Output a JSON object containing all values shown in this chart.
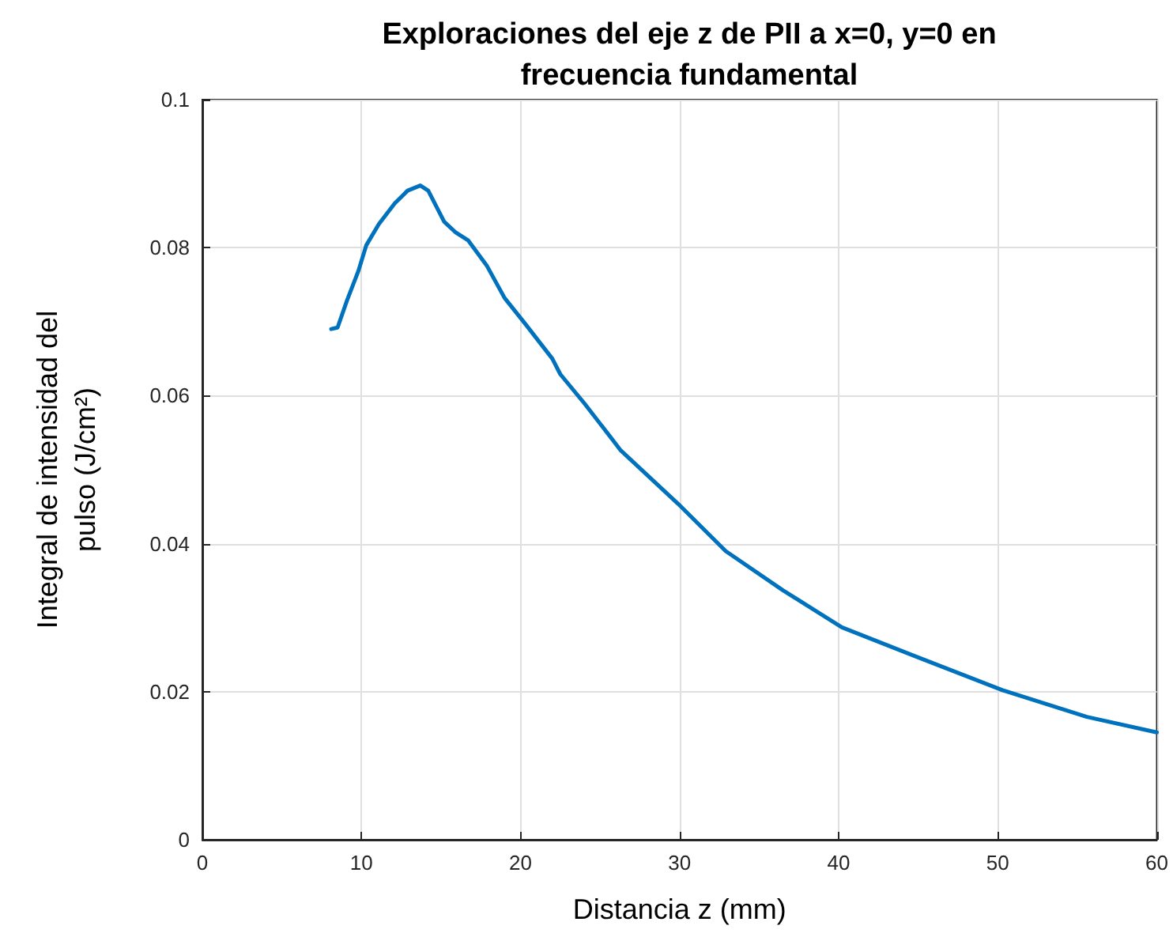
{
  "chart_data": {
    "type": "line",
    "title": "Exploraciones del eje z de PII a x=0, y=0 en\nfrecuencia fundamental",
    "xlabel": "Distancia z (mm)",
    "ylabel": "Integral de intensidad del\npulso (J/cm²)",
    "xlim": [
      0,
      60
    ],
    "xticks": [
      0,
      10,
      20,
      30,
      40,
      50,
      60
    ],
    "ylim": [
      0,
      0.1
    ],
    "yticks": [
      0,
      0.02,
      0.04,
      0.06,
      0.08,
      0.1
    ],
    "grid": true,
    "marker": "none",
    "line_style": "solid",
    "series": [
      {
        "color": "#0072bd",
        "x": [
          8.1,
          8.5,
          9.1,
          9.8,
          10.3,
          11.1,
          12.1,
          12.9,
          13.7,
          14.2,
          15.2,
          15.9,
          16.7,
          17.9,
          19.0,
          20.3,
          22.0,
          22.5,
          24.0,
          25.8,
          26.3,
          29.9,
          32.9,
          36.5,
          40.2,
          44.8,
          50.3,
          55.6,
          60.0
        ],
        "values": [
          0.069,
          0.0692,
          0.0729,
          0.0768,
          0.0803,
          0.0832,
          0.086,
          0.0877,
          0.0884,
          0.0877,
          0.0835,
          0.0821,
          0.081,
          0.0775,
          0.0732,
          0.0697,
          0.065,
          0.0629,
          0.059,
          0.054,
          0.0526,
          0.0454,
          0.039,
          0.0337,
          0.0287,
          0.0248,
          0.0202,
          0.0166,
          0.0145
        ]
      }
    ]
  }
}
